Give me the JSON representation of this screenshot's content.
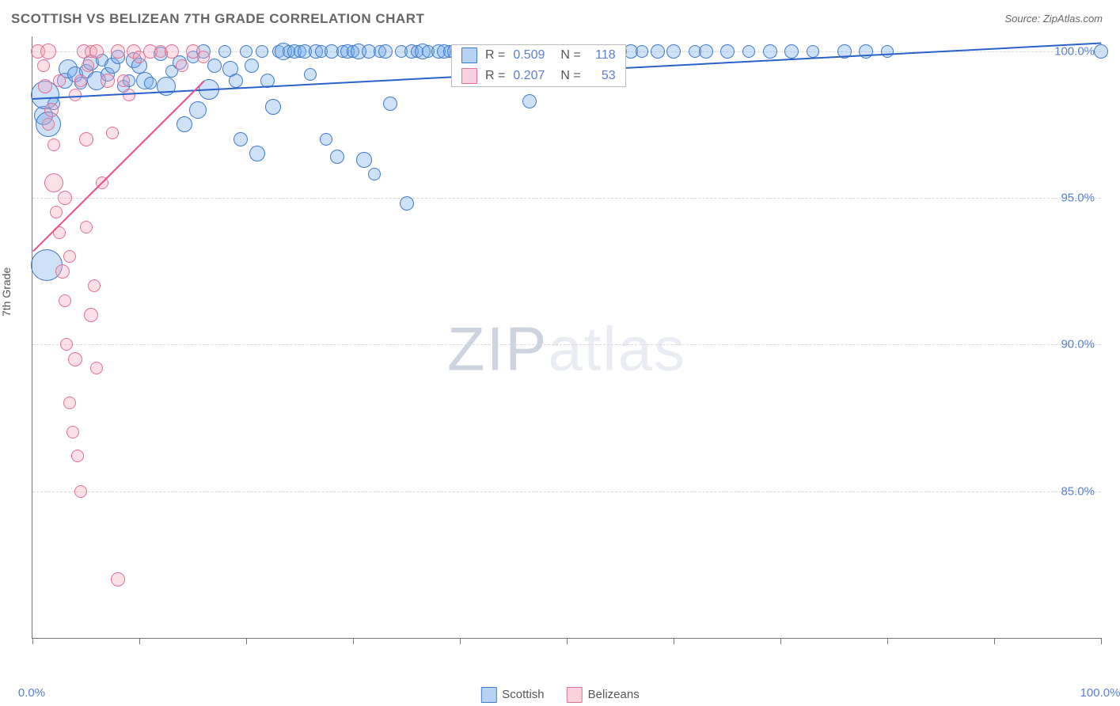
{
  "header": {
    "title": "SCOTTISH VS BELIZEAN 7TH GRADE CORRELATION CHART",
    "source": "Source: ZipAtlas.com"
  },
  "watermark": {
    "brand1": "ZIP",
    "brand2": "atlas"
  },
  "chart": {
    "type": "scatter",
    "ylabel": "7th Grade",
    "background_color": "#ffffff",
    "grid_color": "#d9d9d9",
    "axis_color": "#777777",
    "label_color": "#5b7fd1",
    "label_fontsize": 15,
    "xlim": [
      0,
      100
    ],
    "ylim": [
      80,
      100.5
    ],
    "xticks": [
      0,
      10,
      20,
      30,
      40,
      50,
      60,
      70,
      80,
      90,
      100
    ],
    "xtick_labels": {
      "0": "0.0%",
      "100": "100.0%"
    },
    "yticks": [
      85,
      90,
      95,
      100
    ],
    "ytick_labels": {
      "85": "85.0%",
      "90": "90.0%",
      "95": "95.0%",
      "100": "100.0%"
    },
    "marker_border_width": 1.5,
    "marker_fill_opacity": 0.35,
    "default_radius": 9,
    "series": [
      {
        "name": "Scottish",
        "color": "#6fa8e8",
        "border": "#3f7acc",
        "trend": {
          "color": "#2b62c9",
          "width": 2,
          "x1": 0,
          "y1": 98.4,
          "x2": 100,
          "y2": 100.3
        },
        "stat": {
          "R": "0.509",
          "N": "118"
        },
        "points": [
          [
            1,
            97.8,
            12
          ],
          [
            1.2,
            98.5,
            18
          ],
          [
            1.5,
            97.5,
            16
          ],
          [
            1.3,
            92.7,
            20
          ],
          [
            2,
            98.2,
            8
          ],
          [
            3,
            99.0,
            10
          ],
          [
            3.3,
            99.4,
            12
          ],
          [
            4,
            99.2,
            10
          ],
          [
            4.5,
            98.9,
            8
          ],
          [
            5,
            99.3,
            9
          ],
          [
            5.5,
            99.6,
            10
          ],
          [
            6,
            99.0,
            12
          ],
          [
            6.5,
            99.7,
            8
          ],
          [
            7,
            99.2,
            9
          ],
          [
            7.5,
            99.5,
            10
          ],
          [
            8,
            99.8,
            9
          ],
          [
            8.5,
            98.8,
            8
          ],
          [
            9,
            99.0,
            8
          ],
          [
            9.5,
            99.7,
            10
          ],
          [
            10,
            99.5,
            10
          ],
          [
            10.5,
            99.0,
            11
          ],
          [
            11,
            98.9,
            8
          ],
          [
            12,
            99.9,
            9
          ],
          [
            12.5,
            98.8,
            12
          ],
          [
            13,
            99.3,
            8
          ],
          [
            13.8,
            99.6,
            9
          ],
          [
            14.2,
            97.5,
            10
          ],
          [
            15,
            99.8,
            8
          ],
          [
            15.5,
            98.0,
            11
          ],
          [
            16,
            100.0,
            9
          ],
          [
            16.5,
            98.7,
            13
          ],
          [
            17,
            99.5,
            9
          ],
          [
            18,
            100.0,
            8
          ],
          [
            18.5,
            99.4,
            10
          ],
          [
            19,
            99.0,
            9
          ],
          [
            19.5,
            97.0,
            9
          ],
          [
            20,
            100.0,
            8
          ],
          [
            20.5,
            99.5,
            9
          ],
          [
            21,
            96.5,
            10
          ],
          [
            21.5,
            100.0,
            8
          ],
          [
            22,
            99.0,
            9
          ],
          [
            22.5,
            98.1,
            10
          ],
          [
            23,
            100.0,
            8
          ],
          [
            23.5,
            100.0,
            11
          ],
          [
            24,
            100.0,
            8
          ],
          [
            24.5,
            100.0,
            9
          ],
          [
            25,
            100.0,
            8
          ],
          [
            25.5,
            100.0,
            9
          ],
          [
            26,
            99.2,
            8
          ],
          [
            26.5,
            100.0,
            9
          ],
          [
            27,
            100.0,
            8
          ],
          [
            27.5,
            97.0,
            8
          ],
          [
            28,
            100.0,
            9
          ],
          [
            28.5,
            96.4,
            9
          ],
          [
            29,
            100.0,
            8
          ],
          [
            29.5,
            100.0,
            9
          ],
          [
            30,
            100.0,
            8
          ],
          [
            30.5,
            100.0,
            10
          ],
          [
            31,
            96.3,
            10
          ],
          [
            31.5,
            100.0,
            9
          ],
          [
            32,
            95.8,
            8
          ],
          [
            32.5,
            100.0,
            8
          ],
          [
            33,
            100.0,
            9
          ],
          [
            33.5,
            98.2,
            9
          ],
          [
            34.5,
            100.0,
            8
          ],
          [
            35,
            94.8,
            9
          ],
          [
            35.5,
            100.0,
            9
          ],
          [
            36,
            100.0,
            8
          ],
          [
            36.5,
            100.0,
            10
          ],
          [
            37,
            100.0,
            8
          ],
          [
            38,
            100.0,
            9
          ],
          [
            38.5,
            100.0,
            9
          ],
          [
            39,
            100.0,
            8
          ],
          [
            39.5,
            100.0,
            9
          ],
          [
            40,
            100.0,
            8
          ],
          [
            41,
            100.0,
            9
          ],
          [
            42,
            100.0,
            8
          ],
          [
            43,
            100.0,
            9
          ],
          [
            44,
            100.0,
            8
          ],
          [
            45,
            100.0,
            9
          ],
          [
            46,
            100.0,
            8
          ],
          [
            46.5,
            98.3,
            9
          ],
          [
            47,
            100.0,
            9
          ],
          [
            48,
            100.0,
            8
          ],
          [
            49,
            100.0,
            9
          ],
          [
            50,
            100.0,
            8
          ],
          [
            51,
            100.0,
            9
          ],
          [
            52,
            100.0,
            8
          ],
          [
            53,
            100.0,
            9
          ],
          [
            54,
            100.0,
            9
          ],
          [
            55,
            100.0,
            8
          ],
          [
            56,
            100.0,
            9
          ],
          [
            57,
            100.0,
            8
          ],
          [
            58.5,
            100.0,
            9
          ],
          [
            60,
            100.0,
            9
          ],
          [
            62,
            100.0,
            8
          ],
          [
            63,
            100.0,
            9
          ],
          [
            65,
            100.0,
            9
          ],
          [
            67,
            100.0,
            8
          ],
          [
            69,
            100.0,
            9
          ],
          [
            71,
            100.0,
            9
          ],
          [
            73,
            100.0,
            8
          ],
          [
            76,
            100.0,
            9
          ],
          [
            78,
            100.0,
            9
          ],
          [
            80,
            100.0,
            8
          ],
          [
            100,
            100.0,
            9
          ]
        ]
      },
      {
        "name": "Belizeans",
        "color": "#f4a6bb",
        "border": "#e36f94",
        "trend": {
          "color": "#e94e87",
          "width": 2,
          "x1": 0,
          "y1": 93.2,
          "x2": 16,
          "y2": 99.0
        },
        "stat": {
          "R": "0.207",
          "N": "53"
        },
        "points": [
          [
            0.5,
            100.0,
            9
          ],
          [
            1,
            99.5,
            8
          ],
          [
            1.2,
            98.8,
            9
          ],
          [
            1.5,
            100.0,
            10
          ],
          [
            1.5,
            97.5,
            8
          ],
          [
            1.8,
            98.0,
            9
          ],
          [
            2,
            96.8,
            8
          ],
          [
            2,
            95.5,
            12
          ],
          [
            2.2,
            94.5,
            8
          ],
          [
            2.5,
            93.8,
            8
          ],
          [
            2.5,
            99.0,
            8
          ],
          [
            2.8,
            92.5,
            9
          ],
          [
            3,
            91.5,
            8
          ],
          [
            3,
            95.0,
            9
          ],
          [
            3.2,
            90.0,
            8
          ],
          [
            3.5,
            93.0,
            8
          ],
          [
            3.5,
            88.0,
            8
          ],
          [
            3.8,
            87.0,
            8
          ],
          [
            4,
            89.5,
            9
          ],
          [
            4,
            98.5,
            8
          ],
          [
            4.2,
            86.2,
            8
          ],
          [
            4.5,
            85.0,
            8
          ],
          [
            4.5,
            99.0,
            8
          ],
          [
            4.8,
            100.0,
            9
          ],
          [
            5,
            97.0,
            9
          ],
          [
            5,
            94.0,
            8
          ],
          [
            5.2,
            99.5,
            8
          ],
          [
            5.5,
            91.0,
            9
          ],
          [
            5.5,
            100.0,
            8
          ],
          [
            5.8,
            92.0,
            8
          ],
          [
            6,
            100.0,
            9
          ],
          [
            6,
            89.2,
            8
          ],
          [
            6.5,
            95.5,
            8
          ],
          [
            7,
            99.0,
            9
          ],
          [
            7.5,
            97.2,
            8
          ],
          [
            8,
            100.0,
            9
          ],
          [
            8,
            82.0,
            9
          ],
          [
            8.5,
            99.0,
            8
          ],
          [
            9,
            98.5,
            8
          ],
          [
            9.5,
            100.0,
            9
          ],
          [
            10,
            99.8,
            8
          ],
          [
            11,
            100.0,
            9
          ],
          [
            12,
            100.0,
            8
          ],
          [
            13,
            100.0,
            9
          ],
          [
            14,
            99.5,
            8
          ],
          [
            15,
            100.0,
            9
          ],
          [
            16,
            99.8,
            8
          ]
        ]
      }
    ],
    "legend": {
      "series1_label": "Scottish",
      "series2_label": "Belizeans",
      "r_label": "R =",
      "n_label": "N ="
    }
  }
}
